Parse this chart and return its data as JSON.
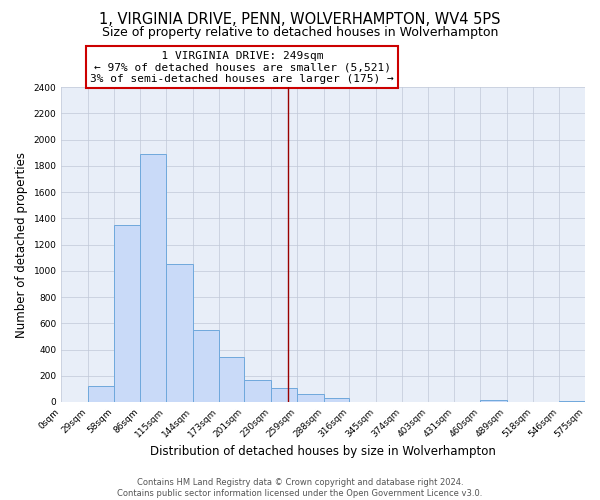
{
  "title": "1, VIRGINIA DRIVE, PENN, WOLVERHAMPTON, WV4 5PS",
  "subtitle": "Size of property relative to detached houses in Wolverhampton",
  "xlabel": "Distribution of detached houses by size in Wolverhampton",
  "ylabel": "Number of detached properties",
  "bin_edges": [
    0,
    29,
    58,
    86,
    115,
    144,
    173,
    201,
    230,
    259,
    288,
    316,
    345,
    374,
    403,
    431,
    460,
    489,
    518,
    546,
    575
  ],
  "bar_heights": [
    0,
    125,
    1350,
    1890,
    1050,
    550,
    340,
    165,
    110,
    60,
    30,
    0,
    0,
    0,
    0,
    0,
    15,
    0,
    0,
    5
  ],
  "bar_color": "#c9daf8",
  "bar_edgecolor": "#6fa8dc",
  "vline_x": 249,
  "vline_color": "#990000",
  "annotation_title": "1 VIRGINIA DRIVE: 249sqm",
  "annotation_line1": "← 97% of detached houses are smaller (5,521)",
  "annotation_line2": "3% of semi-detached houses are larger (175) →",
  "annotation_box_edgecolor": "#cc0000",
  "ylim": [
    0,
    2400
  ],
  "yticks": [
    0,
    200,
    400,
    600,
    800,
    1000,
    1200,
    1400,
    1600,
    1800,
    2000,
    2200,
    2400
  ],
  "xtick_labels": [
    "0sqm",
    "29sqm",
    "58sqm",
    "86sqm",
    "115sqm",
    "144sqm",
    "173sqm",
    "201sqm",
    "230sqm",
    "259sqm",
    "288sqm",
    "316sqm",
    "345sqm",
    "374sqm",
    "403sqm",
    "431sqm",
    "460sqm",
    "489sqm",
    "518sqm",
    "546sqm",
    "575sqm"
  ],
  "footer_line1": "Contains HM Land Registry data © Crown copyright and database right 2024.",
  "footer_line2": "Contains public sector information licensed under the Open Government Licence v3.0.",
  "plot_background": "#e8eef8",
  "grid_color": "#c0c8d8",
  "title_fontsize": 10.5,
  "subtitle_fontsize": 9,
  "axis_label_fontsize": 8.5,
  "tick_fontsize": 6.5,
  "footer_fontsize": 6,
  "annotation_fontsize": 8,
  "annotation_title_fontsize": 8.5
}
